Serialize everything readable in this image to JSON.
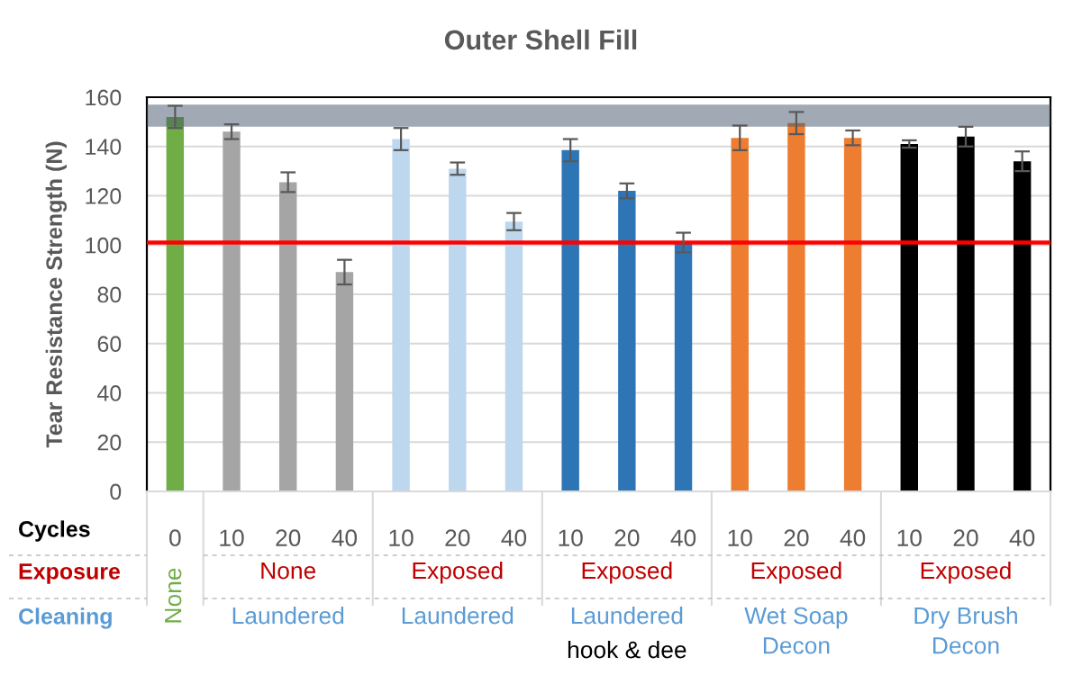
{
  "chart_data": {
    "type": "bar",
    "title": "Outer Shell Fill",
    "ylabel": "Tear Resistance Strength (N)",
    "categories": [
      "0",
      "10",
      "20",
      "40",
      "10",
      "20",
      "40",
      "10",
      "20",
      "40",
      "10",
      "20",
      "40",
      "10",
      "20",
      "40"
    ],
    "values": [
      152,
      146,
      125.5,
      89,
      143,
      131,
      109.5,
      138.5,
      122,
      101,
      143.5,
      149.5,
      143.5,
      141,
      144,
      134
    ],
    "errors": [
      4.5,
      3,
      4,
      5,
      4.5,
      2.5,
      3.5,
      4.5,
      3,
      4,
      5,
      4.5,
      3,
      1.5,
      4,
      4
    ],
    "colors": [
      "#70ad47",
      "#a5a5a5",
      "#a5a5a5",
      "#a5a5a5",
      "#bdd7ee",
      "#bdd7ee",
      "#bdd7ee",
      "#2e75b6",
      "#2e75b6",
      "#2e75b6",
      "#ed7d31",
      "#ed7d31",
      "#ed7d31",
      "#000000",
      "#000000",
      "#000000"
    ],
    "ylim": [
      0,
      160
    ],
    "yticks": [
      0,
      20,
      40,
      60,
      80,
      100,
      120,
      140,
      160
    ],
    "grid": "y",
    "ref_lines": [
      {
        "axis": "y",
        "value": 101,
        "color": "#ff0000"
      }
    ],
    "bands": [
      {
        "axis": "y",
        "from": 148,
        "to": 157,
        "color": "#44546a"
      }
    ],
    "annotations": [
      "Cycles",
      "Exposure",
      "Cleaning",
      "None",
      "None",
      "Exposed",
      "Exposed",
      "Exposed",
      "Exposed",
      "Laundered",
      "Laundered",
      "Laundered",
      "hook & dee",
      "Wet Soap\nDecon",
      "Dry Brush\nDecon"
    ]
  }
}
